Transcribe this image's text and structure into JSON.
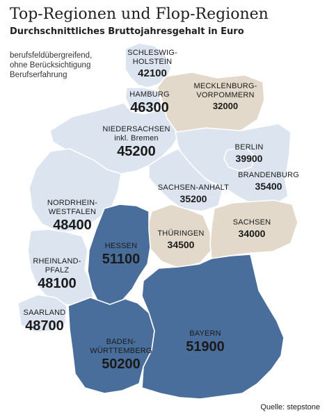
{
  "header": {
    "title": "Top-Regionen und Flop-Regionen",
    "subtitle": "Durchschnittliches Bruttojahresgehalt in Euro"
  },
  "note": {
    "line1": "berufsfeldübergreifend,",
    "line2": "ohne Berücksichtigung",
    "line3": "Berufserfahrung"
  },
  "legend_colors": {
    "top": "#4a6e9b",
    "middle": "#dbe4ef",
    "flop": "#e2d9ca"
  },
  "regions": {
    "sh": {
      "name1": "SCHLESWIG-",
      "name2": "HOLSTEIN",
      "value": "42100",
      "category": "middle"
    },
    "hh": {
      "name1": "HAMBURG",
      "value": "46300",
      "category": "middle"
    },
    "mv": {
      "name1": "MECKLENBURG-",
      "name2": "VORPOMMERN",
      "value": "32000",
      "category": "flop"
    },
    "ni": {
      "name1": "NIEDERSACHSEN",
      "name2": "inkl. Bremen",
      "value": "45200",
      "category": "middle"
    },
    "be": {
      "name1": "BERLIN",
      "value": "39900",
      "category": "middle"
    },
    "bb": {
      "name1": "BRANDENBURG",
      "value": "35400",
      "category": "middle"
    },
    "st": {
      "name1": "SACHSEN-ANHALT",
      "value": "35200",
      "category": "middle"
    },
    "nw": {
      "name1": "NORDRHEIN-",
      "name2": "WESTFALEN",
      "value": "48400",
      "category": "middle"
    },
    "he": {
      "name1": "HESSEN",
      "value": "51100",
      "category": "top"
    },
    "th": {
      "name1": "THÜRINGEN",
      "value": "34500",
      "category": "flop"
    },
    "sn": {
      "name1": "SACHSEN",
      "value": "34000",
      "category": "flop"
    },
    "rp": {
      "name1": "RHEINLAND-",
      "name2": "PFALZ",
      "value": "48100",
      "category": "middle"
    },
    "sl": {
      "name1": "SAARLAND",
      "value": "48700",
      "category": "middle"
    },
    "bw": {
      "name1": "BADEN-",
      "name2": "WÜRTTEMBERG",
      "value": "50200",
      "category": "top"
    },
    "by": {
      "name1": "BAYERN",
      "value": "51900",
      "category": "top"
    }
  },
  "source": "Quelle: stepstone"
}
